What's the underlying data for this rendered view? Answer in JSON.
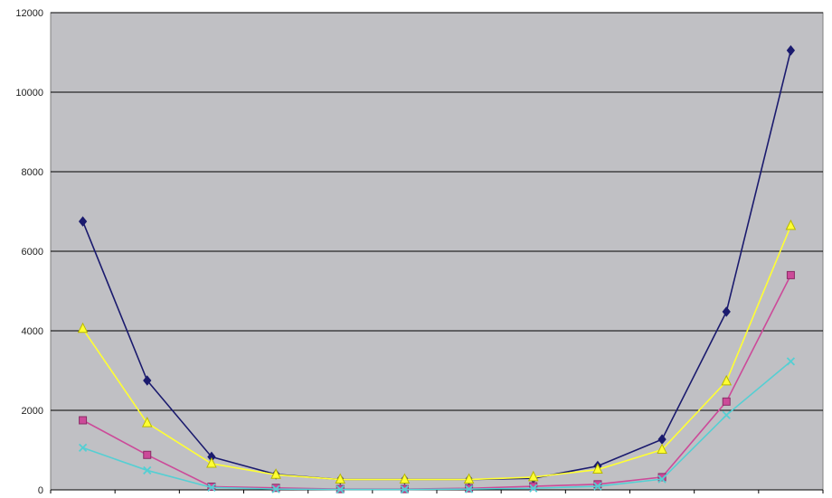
{
  "chart_data": {
    "type": "line",
    "title": "",
    "xlabel": "",
    "ylabel": "",
    "ylim": [
      0,
      12000
    ],
    "yticks": [
      "0",
      "2000",
      "4000",
      "6000",
      "8000",
      "10000",
      "12000"
    ],
    "grid": true,
    "legend": "none",
    "x_count": 12,
    "series": [
      {
        "marker": "diamond",
        "color": "#1a1a6e",
        "values": [
          6750,
          2750,
          830,
          390,
          260,
          260,
          260,
          290,
          600,
          1270,
          4480,
          11050
        ]
      },
      {
        "marker": "square",
        "color": "#cc4a99",
        "values": [
          1750,
          880,
          80,
          50,
          20,
          20,
          40,
          90,
          140,
          320,
          2220,
          5400
        ]
      },
      {
        "marker": "triangle",
        "color": "#ffff33",
        "values": [
          4050,
          1680,
          660,
          380,
          260,
          260,
          260,
          320,
          510,
          1010,
          2730,
          6640
        ]
      },
      {
        "marker": "x",
        "color": "#55cfd3",
        "values": [
          1060,
          490,
          60,
          20,
          10,
          10,
          20,
          40,
          90,
          270,
          1880,
          3230
        ]
      }
    ]
  },
  "style": {
    "plot_bg": "#c0c0c4",
    "grid_color": "#000000",
    "page_bg": "#ffffff"
  }
}
